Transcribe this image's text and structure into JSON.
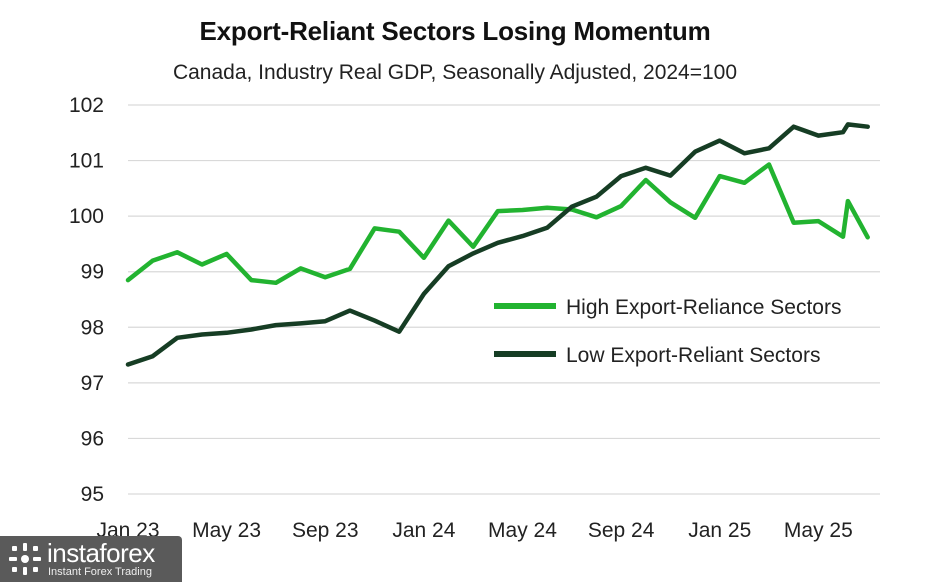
{
  "chart_data": {
    "type": "line",
    "title": "Export-Reliant Sectors Losing Momentum",
    "subtitle": "Canada, Industry Real GDP, Seasonally Adjusted, 2024=100",
    "xlabel": "",
    "ylabel": "",
    "ylim": [
      95,
      102
    ],
    "yticks": [
      95,
      96,
      97,
      98,
      99,
      100,
      101,
      102
    ],
    "xlim": [
      0,
      30.5
    ],
    "xticks": [
      {
        "label": "Jan 23",
        "x": 0
      },
      {
        "label": "May 23",
        "x": 4
      },
      {
        "label": "Sep 23",
        "x": 8
      },
      {
        "label": "Jan 24",
        "x": 12
      },
      {
        "label": "May 24",
        "x": 16
      },
      {
        "label": "Sep 24",
        "x": 20
      },
      {
        "label": "Jan 25",
        "x": 24
      },
      {
        "label": "May 25",
        "x": 28
      }
    ],
    "grid": true,
    "legend_position": "center-right",
    "series": [
      {
        "name": "High Export-Reliance Sectors",
        "color": "#22b330",
        "x": [
          0,
          1,
          2,
          3,
          4,
          5,
          6,
          7,
          8,
          9,
          10,
          11,
          12,
          13,
          14,
          15,
          16,
          17,
          18,
          19,
          20,
          21,
          22,
          23,
          24,
          25,
          26,
          27,
          28,
          29,
          29.2,
          30
        ],
        "values": [
          98.85,
          99.2,
          99.35,
          99.13,
          99.32,
          98.85,
          98.8,
          99.06,
          98.9,
          99.05,
          99.78,
          99.72,
          99.25,
          99.92,
          99.45,
          100.09,
          100.11,
          100.15,
          100.12,
          99.98,
          100.18,
          100.65,
          100.25,
          99.97,
          100.72,
          100.6,
          100.93,
          99.88,
          99.91,
          99.63,
          100.27,
          99.62
        ]
      },
      {
        "name": "Low Export-Reliant Sectors",
        "color": "#163d24",
        "x": [
          0,
          1,
          2,
          3,
          4,
          5,
          6,
          7,
          8,
          9,
          10,
          11,
          12,
          13,
          14,
          15,
          16,
          17,
          18,
          19,
          20,
          21,
          22,
          23,
          24,
          25,
          26,
          27,
          28,
          29,
          29.2,
          30
        ],
        "values": [
          97.33,
          97.48,
          97.81,
          97.87,
          97.9,
          97.96,
          98.04,
          98.07,
          98.11,
          98.3,
          98.12,
          97.92,
          98.6,
          99.1,
          99.33,
          99.52,
          99.64,
          99.79,
          100.17,
          100.35,
          100.72,
          100.87,
          100.73,
          101.16,
          101.36,
          101.13,
          101.22,
          101.61,
          101.45,
          101.51,
          101.65,
          101.61
        ]
      }
    ]
  },
  "watermark": {
    "brand": "instaforex",
    "tagline": "Instant Forex Trading"
  }
}
